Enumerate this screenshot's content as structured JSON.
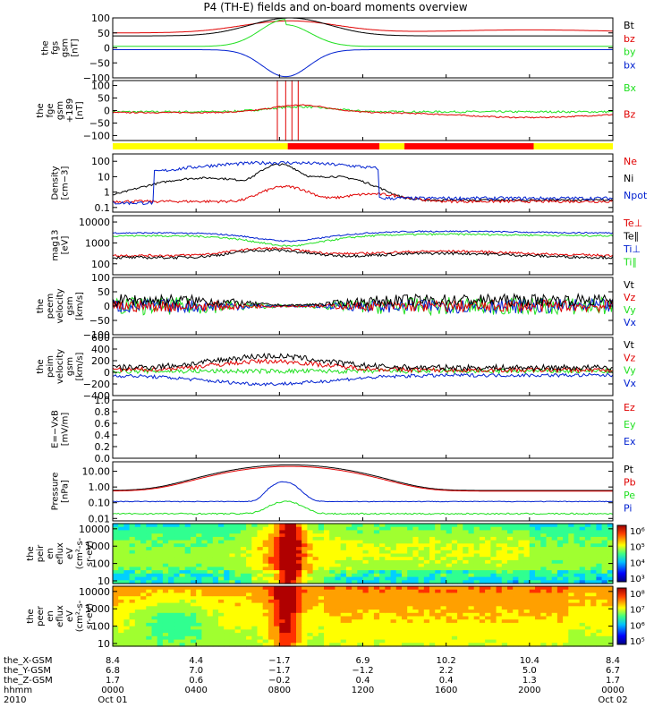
{
  "title": "P4 (TH-E) fields and on-board moments overview",
  "colors": {
    "black": "#000000",
    "red": "#e00000",
    "green": "#20e020",
    "blue": "#0020d0",
    "yellow": "#ffff00",
    "brightred": "#ff0000"
  },
  "chart_data": {
    "type": "line",
    "time_range": [
      "2010-10-01 00:00",
      "2010-10-02 00:00"
    ],
    "x_ticks": [
      "0000",
      "0400",
      "0800",
      "1200",
      "1600",
      "2000",
      "0000"
    ],
    "x_tick_hours": [
      0,
      4,
      8,
      12,
      16,
      20,
      24
    ],
    "status_bar": {
      "segments": [
        {
          "from": 0,
          "to": 8.4,
          "color": "yellow"
        },
        {
          "from": 8.4,
          "to": 12.8,
          "color": "red"
        },
        {
          "from": 12.8,
          "to": 14.0,
          "color": "yellow"
        },
        {
          "from": 14.0,
          "to": 20.2,
          "color": "red"
        },
        {
          "from": 20.2,
          "to": 24,
          "color": "yellow"
        }
      ]
    },
    "panels": [
      {
        "id": "fgs",
        "ylabel": [
          "the",
          "fgs",
          "gsm",
          "[nT]"
        ],
        "ytick_labels": [
          "100",
          "50",
          "0",
          "−50",
          "−100"
        ],
        "ytick_values": [
          100,
          50,
          0,
          -50,
          -100
        ],
        "ylim": [
          -100,
          100
        ],
        "legend": [
          "Bt",
          "bz",
          "by",
          "bx"
        ],
        "legend_colors": [
          "black",
          "red",
          "green",
          "blue"
        ]
      },
      {
        "id": "fge",
        "ylabel": [
          "the",
          "fge",
          "gsm",
          "+189",
          "[nT]"
        ],
        "ytick_labels": [
          "100",
          "50",
          "0",
          "−50",
          "−100"
        ],
        "ytick_values": [
          100,
          50,
          0,
          -50,
          -100
        ],
        "ylim": [
          -120,
          120
        ],
        "legend": [
          "Bx",
          "Bz"
        ],
        "legend_colors": [
          "green",
          "red"
        ]
      },
      {
        "id": "density",
        "ylabel": [
          "Density",
          "[cm−3]"
        ],
        "ytick_labels": [
          "100",
          "10",
          "1",
          "0.1"
        ],
        "ytick_values": [
          100,
          10,
          1,
          0.1
        ],
        "ylim": [
          0.05,
          300
        ],
        "log": true,
        "legend": [
          "Ne",
          "Ni",
          "Npot"
        ],
        "legend_colors": [
          "red",
          "black",
          "blue"
        ]
      },
      {
        "id": "temp",
        "ylabel": [
          "mag13",
          "[eV]"
        ],
        "ytick_labels": [
          "10000",
          "1000",
          "100"
        ],
        "ytick_values": [
          10000,
          1000,
          100
        ],
        "ylim": [
          30,
          20000
        ],
        "log": true,
        "legend": [
          "Te⊥",
          "Te∥",
          "Ti⊥",
          "Ti∥"
        ],
        "legend_colors": [
          "red",
          "black",
          "blue",
          "green"
        ]
      },
      {
        "id": "vel_e",
        "ylabel": [
          "the",
          "peem",
          "velocity",
          "gsm",
          "[km/s]"
        ],
        "ytick_labels": [
          "100",
          "50",
          "0",
          "−50",
          "−100"
        ],
        "ytick_values": [
          100,
          50,
          0,
          -50,
          -100
        ],
        "ylim": [
          -100,
          100
        ],
        "legend": [
          "Vt",
          "Vz",
          "Vy",
          "Vx"
        ],
        "legend_colors": [
          "black",
          "red",
          "green",
          "blue"
        ]
      },
      {
        "id": "vel_i",
        "ylabel": [
          "the",
          "peim",
          "velocity",
          "gsm",
          "[km/s]"
        ],
        "ytick_labels": [
          "600",
          "400",
          "200",
          "0",
          "−200",
          "−400"
        ],
        "ytick_values": [
          600,
          400,
          200,
          0,
          -200,
          -400
        ],
        "ylim": [
          -400,
          600
        ],
        "legend": [
          "Vt",
          "Vz",
          "Vy",
          "Vx"
        ],
        "legend_colors": [
          "black",
          "red",
          "green",
          "blue"
        ]
      },
      {
        "id": "efield",
        "ylabel": [
          "E=−VxB",
          "[mV/m]"
        ],
        "ytick_labels": [
          "1.0",
          "0.8",
          "0.6",
          "0.4",
          "0.2",
          "0.0"
        ],
        "ytick_values": [
          1.0,
          0.8,
          0.6,
          0.4,
          0.2,
          0.0
        ],
        "ylim": [
          0,
          1
        ],
        "legend": [
          "Ez",
          "Ey",
          "Ex"
        ],
        "legend_colors": [
          "red",
          "green",
          "blue"
        ]
      },
      {
        "id": "pressure",
        "ylabel": [
          "Pressure",
          "[nPa]"
        ],
        "ytick_labels": [
          "10.00",
          "1.00",
          "0.10",
          "0.01"
        ],
        "ytick_values": [
          10,
          1,
          0.1,
          0.01
        ],
        "ylim": [
          0.007,
          40
        ],
        "log": true,
        "legend": [
          "Pt",
          "Pb",
          "Pe",
          "Pi"
        ],
        "legend_colors": [
          "black",
          "red",
          "green",
          "blue"
        ]
      },
      {
        "id": "ion_spec",
        "ylabel": [
          "the",
          "peir",
          "en",
          "eflux",
          "eV",
          "(cm²-s-",
          "sr-eV)"
        ],
        "ytick_labels": [
          "10000",
          "1000",
          "100",
          "10"
        ],
        "ytick_values": [
          10000,
          1000,
          100,
          10
        ],
        "ylim": [
          7,
          20000
        ],
        "log": true,
        "colorbar_labels": [
          "10⁶",
          "10⁵",
          "10⁴",
          "10³"
        ]
      },
      {
        "id": "ele_spec",
        "ylabel": [
          "the",
          "peer",
          "en",
          "eflux",
          "eV",
          "(cm²-s-",
          "sr-eV)"
        ],
        "ytick_labels": [
          "10000",
          "1000",
          "100",
          "10"
        ],
        "ytick_values": [
          10000,
          1000,
          100,
          10
        ],
        "ylim": [
          7,
          20000
        ],
        "log": true,
        "colorbar_labels": [
          "10⁸",
          "10⁷",
          "10⁶",
          "10⁵"
        ]
      }
    ],
    "bottom_rows": {
      "labels": [
        "the_X-GSM",
        "the_Y-GSM",
        "the_Z-GSM",
        "hhmm",
        "2010"
      ],
      "values": [
        [
          "8.4",
          "4.4",
          "−1.7",
          "6.9",
          "10.2",
          "10.4",
          "8.4"
        ],
        [
          "6.8",
          "7.0",
          "−1.7",
          "−1.2",
          "2.2",
          "5.0",
          "6.7"
        ],
        [
          "1.7",
          "0.6",
          "−0.2",
          "0.4",
          "0.4",
          "1.3",
          "1.7"
        ]
      ],
      "dates": [
        "Oct 01",
        "Oct 02"
      ]
    }
  }
}
